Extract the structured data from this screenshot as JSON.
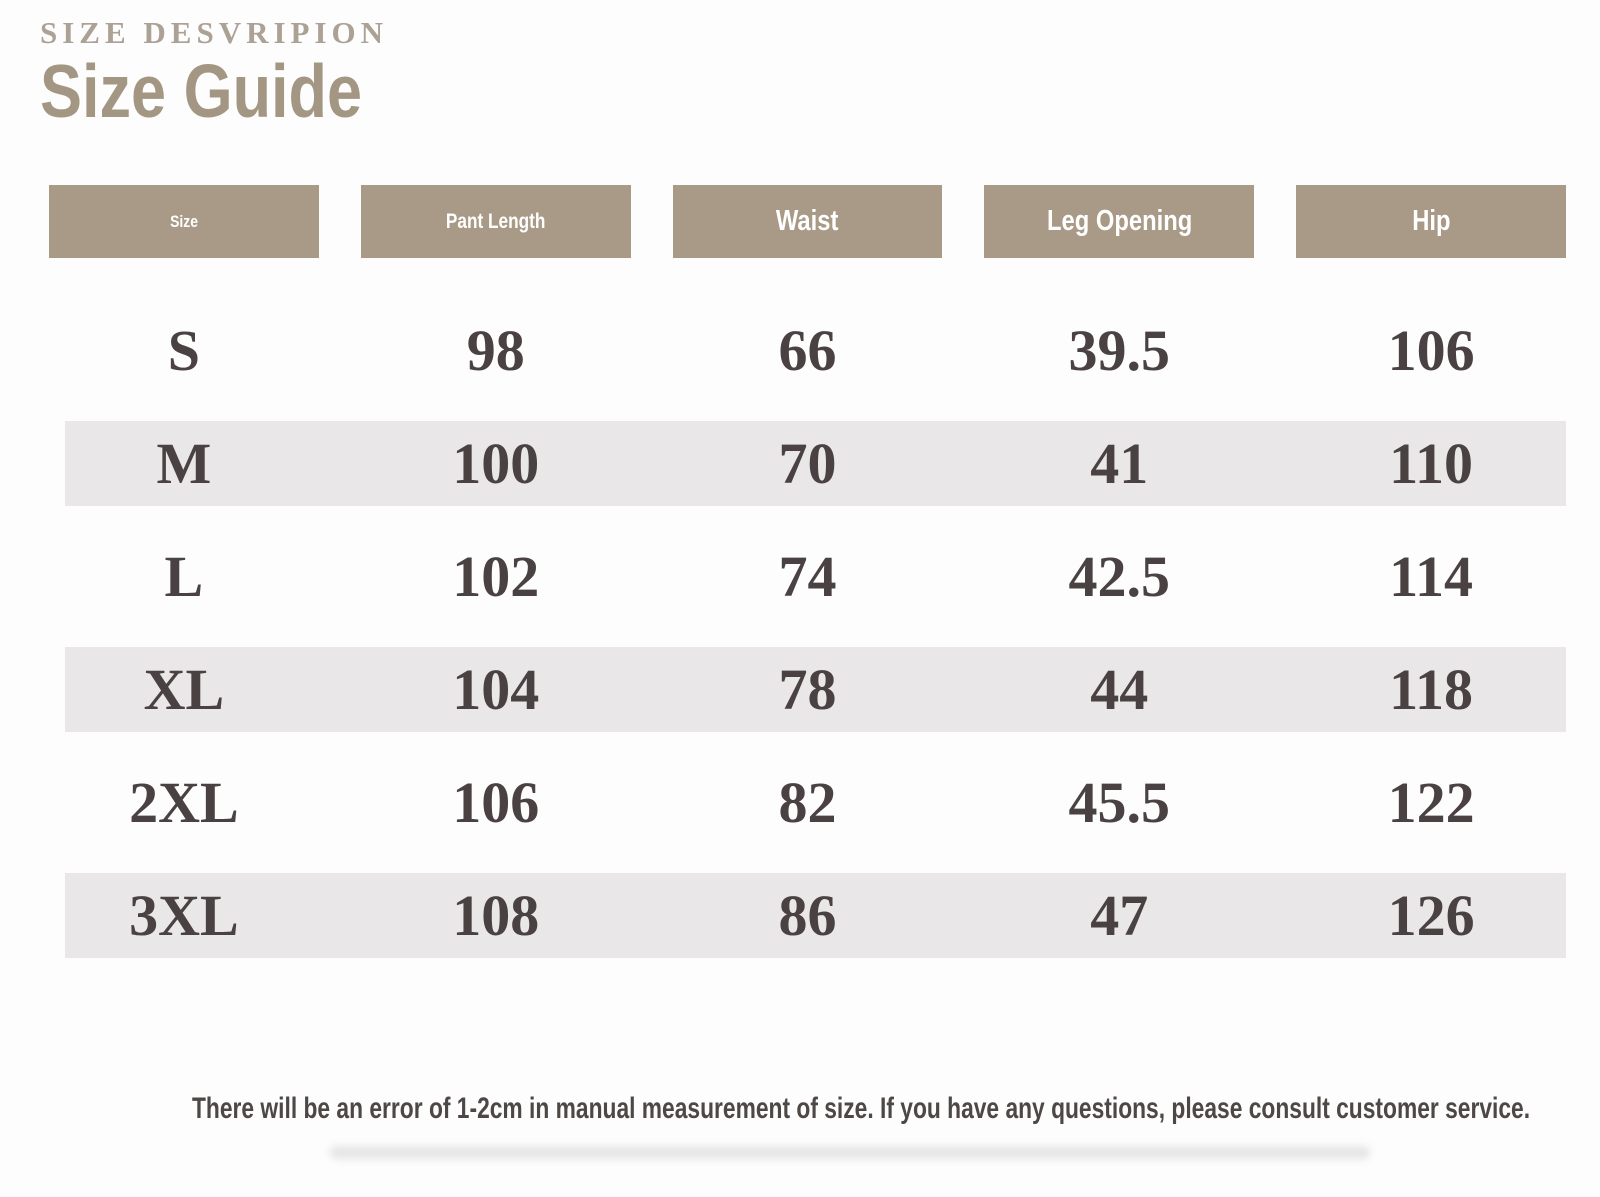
{
  "page": {
    "eyebrow": "SIZE DESVRIPION",
    "title": "Size Guide",
    "footer_note": "There will be an error of 1-2cm in manual measurement of size. If you have any questions, please consult customer service."
  },
  "table": {
    "columns": [
      "Size",
      "Pant Length",
      "Waist",
      "Leg Opening",
      "Hip"
    ],
    "rows": [
      {
        "cells": [
          "S",
          "98",
          "66",
          "39.5",
          "106"
        ]
      },
      {
        "cells": [
          "M",
          "100",
          "70",
          "41",
          "110"
        ]
      },
      {
        "cells": [
          "L",
          "102",
          "74",
          "42.5",
          "114"
        ]
      },
      {
        "cells": [
          "XL",
          "104",
          "78",
          "44",
          "118"
        ]
      },
      {
        "cells": [
          "2XL",
          "106",
          "82",
          "45.5",
          "122"
        ]
      },
      {
        "cells": [
          "3XL",
          "108",
          "86",
          "47",
          "126"
        ]
      }
    ]
  },
  "colors": {
    "header_bg": "#a89a86",
    "stripe_bg": "#e9e7e7",
    "title_color": "#a39783",
    "eyebrow_color": "#aca195",
    "cell_text": "#4a4143",
    "footer_text": "#4d4846",
    "page_bg": "#fdfdfd"
  }
}
